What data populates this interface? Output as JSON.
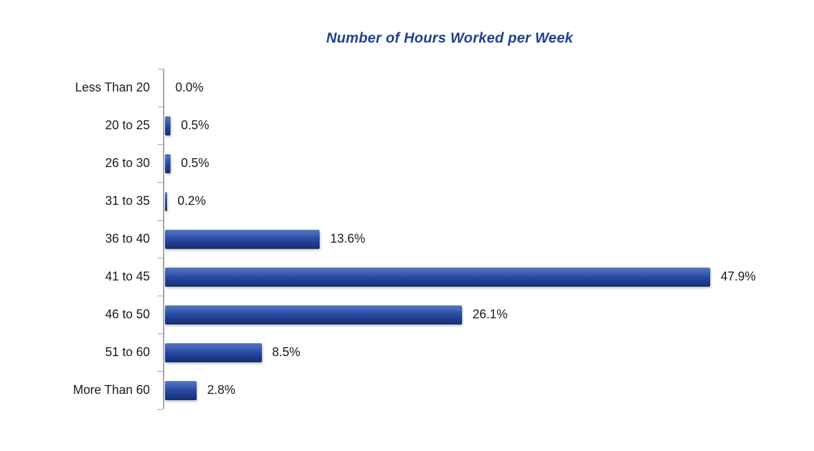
{
  "chart_data": {
    "type": "bar",
    "orientation": "horizontal",
    "title": "Number of Hours Worked per Week",
    "categories": [
      "Less Than 20",
      "20 to 25",
      "26 to 30",
      "31 to 35",
      "36 to 40",
      "41 to 45",
      "46 to 50",
      "51 to 60",
      "More Than 60"
    ],
    "values": [
      0.0,
      0.5,
      0.5,
      0.2,
      13.6,
      47.9,
      26.1,
      8.5,
      2.8
    ],
    "value_labels": [
      "0.0%",
      "0.5%",
      "0.5%",
      "0.2%",
      "13.6%",
      "47.9%",
      "26.1%",
      "8.5%",
      "2.8%"
    ],
    "xlabel": "",
    "ylabel": "",
    "xlim": [
      0,
      50
    ],
    "grid": false,
    "legend": false,
    "colors": {
      "bar": "#1f3f94",
      "bar_highlight": "#4a6bbf",
      "title": "#24418e",
      "axis": "#a6a6a6",
      "label_text": "#1a1a1a"
    }
  }
}
